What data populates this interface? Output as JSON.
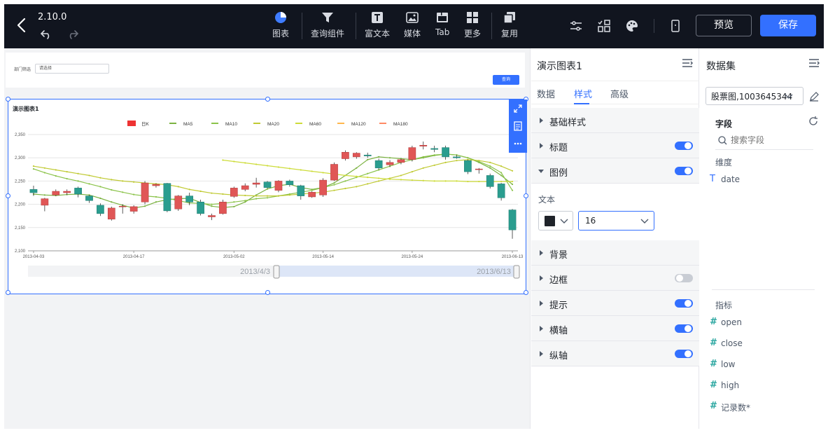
{
  "toolbar": {
    "version": "2.10.0",
    "tools": [
      {
        "label": "图表",
        "icon": "pie-chart-icon"
      },
      {
        "label": "查询组件",
        "icon": "filter-icon"
      },
      {
        "label": "富文本",
        "icon": "text-icon"
      },
      {
        "label": "媒体",
        "icon": "image-icon"
      },
      {
        "label": "Tab",
        "icon": "tab-icon"
      },
      {
        "label": "更多",
        "icon": "grid-icon"
      },
      {
        "label": "复用",
        "icon": "copy-icon"
      }
    ],
    "preview": "预览",
    "save": "保存"
  },
  "canvas": {
    "filter": {
      "label": "部门筛选",
      "placeholder": "请选择",
      "button": "查询"
    }
  },
  "chart_data": {
    "type": "candlestick",
    "title": "演示图表1",
    "legend": [
      "日K",
      "MA5",
      "MA10",
      "MA20",
      "MA60",
      "MA120",
      "MA180"
    ],
    "legend_colors": [
      "#ee3333",
      "#7cb342",
      "#8bc34a",
      "#c0ca33",
      "#cddc39",
      "#ffb74d",
      "#ff8a65"
    ],
    "candle_up_color": "#e05656",
    "candle_down_color": "#2a9d8f",
    "x_ticks": [
      "2013-04-03",
      "2013-04-17",
      "2013-05-02",
      "2013-05-14",
      "2013-05-24",
      "2013-06-13"
    ],
    "y_ticks": [
      2100,
      2150,
      2200,
      2250,
      2300,
      2350
    ],
    "ylim": [
      2100,
      2350
    ],
    "candles": [
      [
        2232,
        2225,
        2218,
        2240
      ],
      [
        2198,
        2212,
        2185,
        2214
      ],
      [
        2220,
        2228,
        2218,
        2232
      ],
      [
        2225,
        2228,
        2220,
        2232
      ],
      [
        2235,
        2222,
        2215,
        2238
      ],
      [
        2218,
        2208,
        2203,
        2220
      ],
      [
        2198,
        2180,
        2175,
        2202
      ],
      [
        2168,
        2192,
        2165,
        2195
      ],
      [
        2195,
        2196,
        2180,
        2200
      ],
      [
        2185,
        2195,
        2180,
        2198
      ],
      [
        2205,
        2246,
        2200,
        2250
      ],
      [
        2240,
        2243,
        2236,
        2245
      ],
      [
        2245,
        2186,
        2183,
        2246
      ],
      [
        2190,
        2218,
        2186,
        2220
      ],
      [
        2218,
        2205,
        2198,
        2225
      ],
      [
        2205,
        2180,
        2176,
        2210
      ],
      [
        2173,
        2176,
        2166,
        2180
      ],
      [
        2180,
        2205,
        2178,
        2210
      ],
      [
        2217,
        2235,
        2214,
        2238
      ],
      [
        2232,
        2240,
        2228,
        2245
      ],
      [
        2243,
        2246,
        2236,
        2257
      ],
      [
        2248,
        2236,
        2234,
        2250
      ],
      [
        2230,
        2250,
        2226,
        2252
      ],
      [
        2250,
        2242,
        2238,
        2253
      ],
      [
        2240,
        2218,
        2210,
        2242
      ],
      [
        2216,
        2226,
        2214,
        2228
      ],
      [
        2220,
        2252,
        2216,
        2256
      ],
      [
        2252,
        2286,
        2250,
        2290
      ],
      [
        2298,
        2312,
        2294,
        2316
      ],
      [
        2302,
        2310,
        2298,
        2312
      ],
      [
        2306,
        2304,
        2300,
        2311
      ],
      [
        2294,
        2278,
        2274,
        2298
      ],
      [
        2285,
        2290,
        2280,
        2295
      ],
      [
        2290,
        2296,
        2286,
        2298
      ],
      [
        2296,
        2322,
        2292,
        2326
      ],
      [
        2325,
        2327,
        2318,
        2335
      ],
      [
        2320,
        2318,
        2312,
        2326
      ],
      [
        2322,
        2302,
        2296,
        2326
      ],
      [
        2302,
        2300,
        2298,
        2306
      ],
      [
        2294,
        2270,
        2265,
        2296
      ],
      [
        2275,
        2276,
        2266,
        2278
      ],
      [
        2262,
        2238,
        2234,
        2266
      ],
      [
        2244,
        2214,
        2208,
        2246
      ],
      [
        2188,
        2145,
        2126,
        2190
      ]
    ],
    "ma_series": [
      {
        "name": "MA5",
        "color": "#7cb342",
        "values": [
          2222,
          2220,
          2219,
          2221,
          2222,
          2220,
          2213,
          2205,
          2198,
          2192,
          2196,
          2205,
          2210,
          2212,
          2213,
          2204,
          2196,
          2193,
          2195,
          2205,
          2220,
          2233,
          2240,
          2243,
          2236,
          2232,
          2236,
          2246,
          2262,
          2278,
          2296,
          2302,
          2300,
          2298,
          2296,
          2300,
          2305,
          2308,
          2306,
          2300,
          2290,
          2278,
          2262,
          2243
        ]
      },
      {
        "name": "MA10",
        "color": "#8bc34a",
        "values": [
          2276,
          2268,
          2261,
          2255,
          2250,
          2244,
          2238,
          2231,
          2226,
          2221,
          2218,
          2216,
          2213,
          2208,
          2203,
          2202,
          2200,
          2202,
          2205,
          2208,
          2212,
          2214,
          2218,
          2222,
          2226,
          2230,
          2236,
          2242,
          2250,
          2258,
          2266,
          2274,
          2282,
          2290,
          2296,
          2302,
          2306,
          2308,
          2306,
          2300,
          2292,
          2282,
          2268,
          2230
        ]
      },
      {
        "name": "MA20",
        "color": "#c0ca33",
        "values": [
          2282,
          2278,
          2274,
          2270,
          2266,
          2262,
          2257,
          2253,
          2250,
          2248,
          2246,
          2244,
          2242,
          2238,
          2232,
          2228,
          2224,
          2222,
          2220,
          2219,
          2218,
          2218,
          2218,
          2220,
          2222,
          2224,
          2226,
          2230,
          2234,
          2238,
          2244,
          2250,
          2256,
          2262,
          2270,
          2278,
          2284,
          2290,
          2294,
          2296,
          2294,
          2290,
          2282,
          2272
        ]
      },
      {
        "name": "MA60",
        "color": "#cddc39",
        "values": [
          null,
          null,
          null,
          null,
          null,
          null,
          null,
          null,
          null,
          null,
          null,
          null,
          null,
          null,
          null,
          null,
          null,
          2295,
          2292,
          2289,
          2286,
          2283,
          2280,
          2277,
          2274,
          2271,
          2268,
          2265,
          2262,
          2260,
          2258,
          2256,
          2254,
          2253,
          2252,
          2251,
          2250,
          2250,
          2250,
          2249,
          2249,
          2249,
          2249,
          2249
        ]
      }
    ],
    "datazoom": {
      "start": "2013/4/3",
      "end": "2013/6/13"
    }
  },
  "style_panel": {
    "title": "演示图表1",
    "tabs": [
      "数据",
      "样式",
      "高级"
    ],
    "active_tab": "样式",
    "sections": [
      {
        "label": "基础样式",
        "expanded": false,
        "has_toggle": false
      },
      {
        "label": "标题",
        "expanded": false,
        "has_toggle": true,
        "on": true
      },
      {
        "label": "图例",
        "expanded": true,
        "has_toggle": true,
        "on": true
      },
      {
        "label": "背景",
        "expanded": false,
        "has_toggle": false
      },
      {
        "label": "边框",
        "expanded": false,
        "has_toggle": true,
        "on": false
      },
      {
        "label": "提示",
        "expanded": false,
        "has_toggle": true,
        "on": true
      },
      {
        "label": "横轴",
        "expanded": false,
        "has_toggle": true,
        "on": true
      },
      {
        "label": "纵轴",
        "expanded": false,
        "has_toggle": true,
        "on": true
      }
    ],
    "legend_text_label": "文本",
    "legend_font_color": "#1f2329",
    "legend_font_size": "16"
  },
  "dataset_panel": {
    "title": "数据集",
    "dataset": "股票图,1003645344",
    "fields_label": "字段",
    "search_placeholder": "搜索字段",
    "dimension_label": "维度",
    "dimensions": [
      "date"
    ],
    "measure_label": "指标",
    "measures": [
      "open",
      "close",
      "low",
      "high",
      "记录数*"
    ]
  }
}
